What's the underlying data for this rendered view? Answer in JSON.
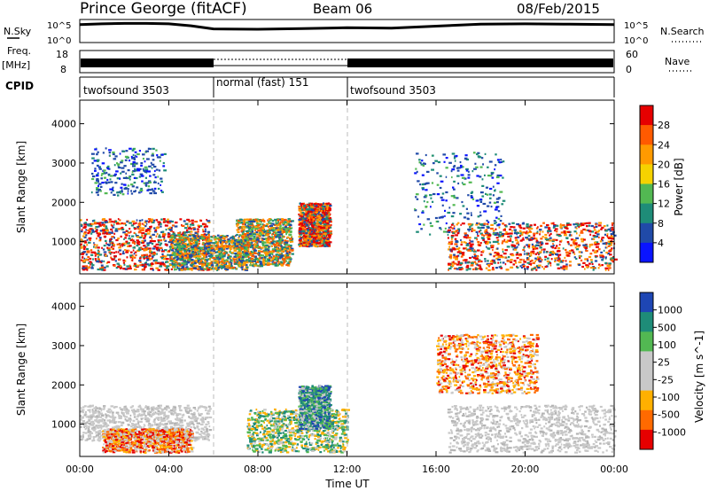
{
  "header": {
    "station": "Prince George (fitACF)",
    "beam": "Beam 06",
    "date": "08/Feb/2015"
  },
  "strip_labels": {
    "nsky": "N.Sky",
    "freq": "Freq.",
    "freq_unit": "[MHz]",
    "cpid": "CPID",
    "nsearch": "N.Search",
    "nave": "Nave"
  },
  "cpid_segments": [
    {
      "label": "twofsound 3503",
      "start": 0,
      "end": 6
    },
    {
      "label": "normal (fast) 151",
      "start": 6,
      "end": 12
    },
    {
      "label": "twofsound 3503",
      "start": 12,
      "end": 24
    }
  ],
  "strip_axes": {
    "noise_ticks_left": [
      "10^5",
      "10^0"
    ],
    "noise_ticks_right": [
      "10^5",
      "10^0"
    ],
    "freq_ticks": [
      "18",
      "8"
    ],
    "nave_ticks": [
      "60",
      "0"
    ]
  },
  "chart_data": [
    {
      "type": "heatmap",
      "title": "",
      "xlabel": "Time UT",
      "ylabel": "Slant Range [km]",
      "xlim": [
        0,
        24
      ],
      "ylim": [
        180,
        4600
      ],
      "x_ticks": [
        "00:00",
        "04:00",
        "08:00",
        "12:00",
        "16:00",
        "20:00",
        "00:00"
      ],
      "y_ticks": [
        "1000",
        "2000",
        "3000",
        "4000"
      ],
      "colorbar": {
        "label": "Power [dB]",
        "ticks": [
          "28",
          "24",
          "20",
          "16",
          "12",
          "8",
          "4"
        ],
        "colors": [
          "#e60000",
          "#ff5a00",
          "#ff9a00",
          "#f5d200",
          "#52b852",
          "#1e8c78",
          "#204aa8",
          "#0a14ff"
        ]
      },
      "echo_regions": [
        {
          "t0": 0.0,
          "t1": 5.8,
          "r0": 300,
          "r1": 1600,
          "level": "high"
        },
        {
          "t0": 0.5,
          "t1": 3.8,
          "r0": 2200,
          "r1": 3400,
          "level": "low"
        },
        {
          "t0": 4.0,
          "t1": 7.5,
          "r0": 300,
          "r1": 1200,
          "level": "medium"
        },
        {
          "t0": 7.0,
          "t1": 9.5,
          "r0": 400,
          "r1": 1600,
          "level": "medium"
        },
        {
          "t0": 9.8,
          "t1": 11.2,
          "r0": 900,
          "r1": 2000,
          "level": "high"
        },
        {
          "t0": 15.0,
          "t1": 19.0,
          "r0": 1200,
          "r1": 3300,
          "level": "low"
        },
        {
          "t0": 16.5,
          "t1": 24.0,
          "r0": 300,
          "r1": 1500,
          "level": "high"
        }
      ]
    },
    {
      "type": "heatmap",
      "title": "",
      "xlabel": "Time UT",
      "ylabel": "Slant Range [km]",
      "xlim": [
        0,
        24
      ],
      "ylim": [
        180,
        4600
      ],
      "x_ticks": [
        "00:00",
        "04:00",
        "08:00",
        "12:00",
        "16:00",
        "20:00",
        "00:00"
      ],
      "y_ticks": [
        "1000",
        "2000",
        "3000",
        "4000"
      ],
      "colorbar": {
        "label": "Velocity [m s^-1]",
        "ticks": [
          "1000",
          "500",
          "100",
          "25",
          "-25",
          "-100",
          "-500",
          "-1000"
        ],
        "colors": [
          "#1e46b4",
          "#1e8c78",
          "#52b852",
          "#c8c8c8",
          "#c8c8c8",
          "#ffb000",
          "#ff6a00",
          "#e60000"
        ]
      },
      "echo_regions": [
        {
          "t0": 0.0,
          "t1": 5.8,
          "r0": 600,
          "r1": 1500,
          "level": "near-zero"
        },
        {
          "t0": 1.0,
          "t1": 5.0,
          "r0": 300,
          "r1": 900,
          "level": "negative"
        },
        {
          "t0": 7.5,
          "t1": 12.0,
          "r0": 300,
          "r1": 1400,
          "level": "mixed"
        },
        {
          "t0": 9.8,
          "t1": 11.2,
          "r0": 900,
          "r1": 2000,
          "level": "positive"
        },
        {
          "t0": 16.0,
          "t1": 20.5,
          "r0": 1800,
          "r1": 3300,
          "level": "negative"
        },
        {
          "t0": 16.5,
          "t1": 24.0,
          "r0": 300,
          "r1": 1500,
          "level": "near-zero"
        }
      ]
    }
  ],
  "noise_series": {
    "hours": [
      0,
      1,
      2,
      3,
      4,
      5,
      6,
      8,
      10,
      12,
      14,
      16,
      18,
      20,
      22,
      24
    ],
    "log_value": [
      4.6,
      4.8,
      4.9,
      4.9,
      4.8,
      4.3,
      3.5,
      3.4,
      3.6,
      3.8,
      3.7,
      4.2,
      4.7,
      4.8,
      4.7,
      4.6
    ]
  }
}
